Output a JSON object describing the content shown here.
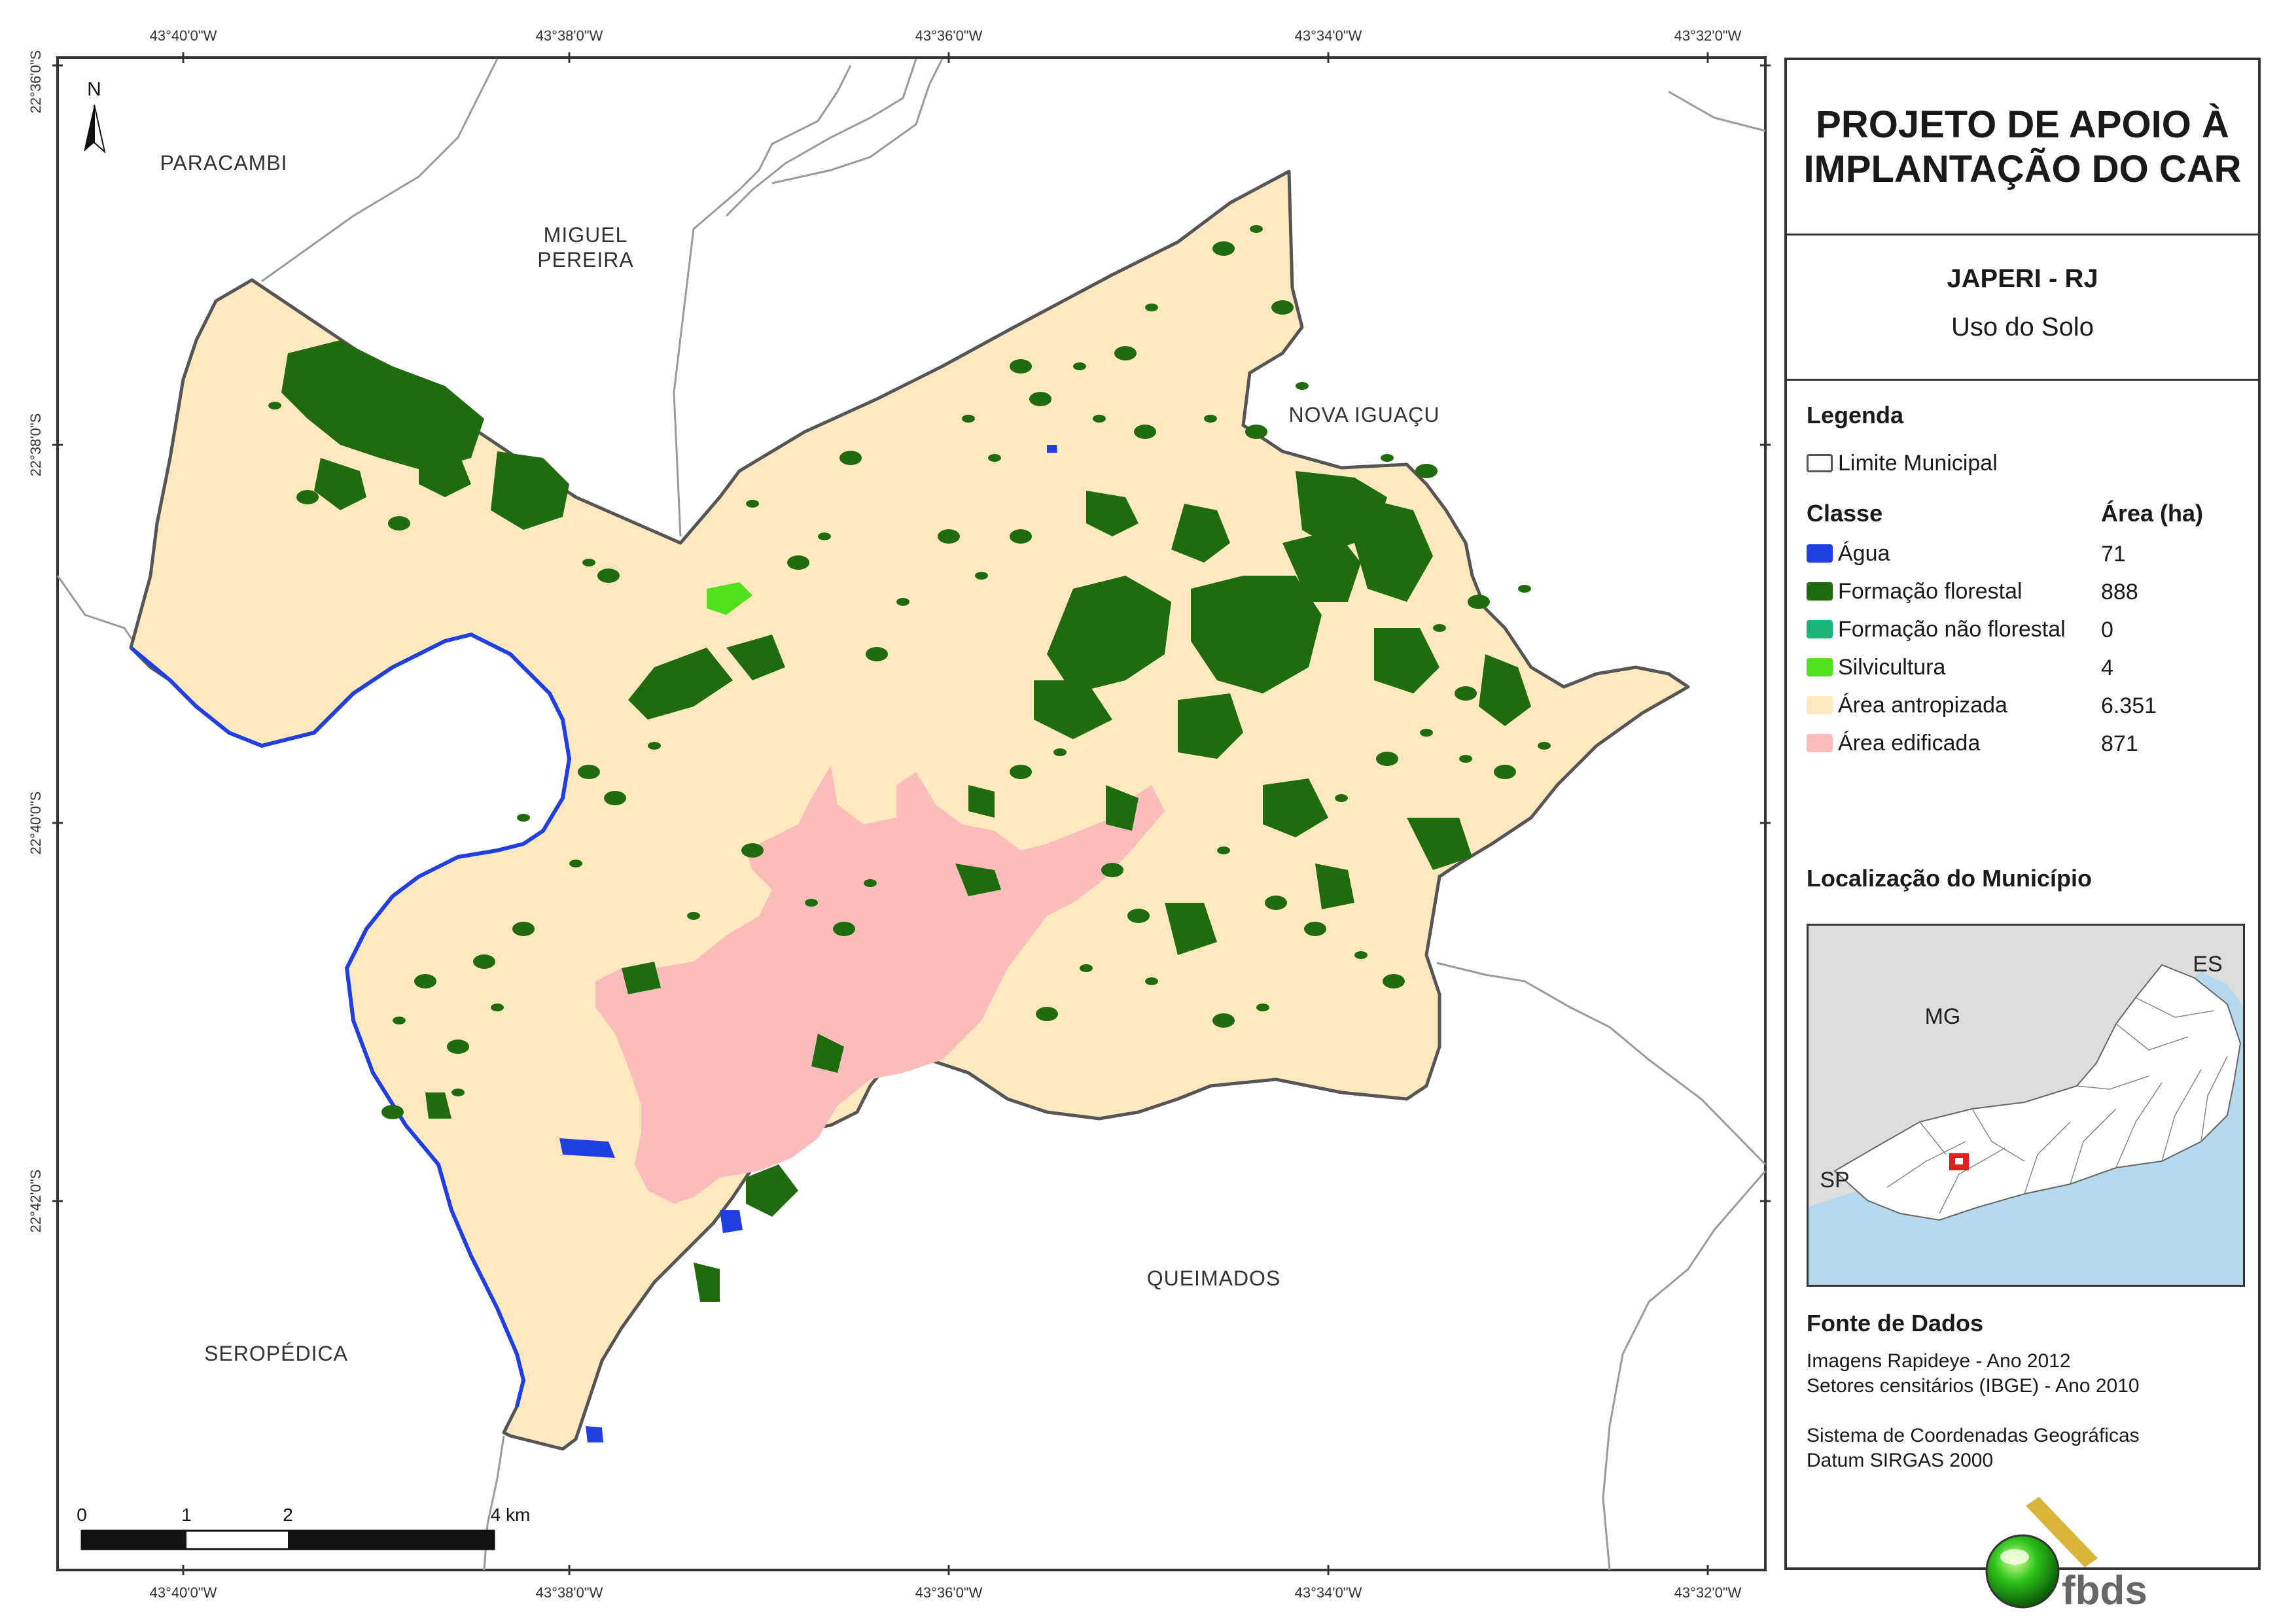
{
  "map": {
    "ticks_top": [
      "43°40'0\"W",
      "43°38'0\"W",
      "43°36'0\"W",
      "43°34'0\"W",
      "43°32'0\"W"
    ],
    "ticks_bottom": [
      "43°40'0\"W",
      "43°38'0\"W",
      "43°36'0\"W",
      "43°34'0\"W",
      "43°32'0\"W"
    ],
    "ticks_left": [
      "22°36'0\"S",
      "22°38'0\"S",
      "22°40'0\"S",
      "22°42'0\"S"
    ],
    "north_label": "N",
    "neighbors": {
      "paracambi": "PARACAMBI",
      "miguel_1": "MIGUEL",
      "miguel_2": "PEREIRA",
      "nova_iguacu": "NOVA IGUAÇU",
      "queimados": "QUEIMADOS",
      "seropedica": "SEROPÉDICA"
    },
    "scale": {
      "l0": "0",
      "l1": "1",
      "l2": "2",
      "l4": "4 km"
    },
    "colors": {
      "water": "#1f3fe0",
      "forest": "#1f6b0e",
      "nonforest": "#1db37a",
      "silvic": "#4fe01e",
      "anthropic": "#fde8c0",
      "built": "#fdbcbc",
      "border": "#555555",
      "neighbor_line": "#9a9a9a"
    }
  },
  "panel": {
    "title_1": "PROJETO DE APOIO À",
    "title_2": "IMPLANTAÇÃO DO CAR",
    "municipality": "JAPERI - RJ",
    "theme": "Uso do Solo",
    "legend_heading": "Legenda",
    "limit_label": "Limite Municipal",
    "class_heading": "Classe",
    "area_heading": "Área (ha)",
    "classes": [
      {
        "label": "Água",
        "area": "71",
        "color": "#1f3fe0"
      },
      {
        "label": "Formação florestal",
        "area": "888",
        "color": "#1f6b0e"
      },
      {
        "label": "Formação não florestal",
        "area": "0",
        "color": "#1db37a"
      },
      {
        "label": "Silvicultura",
        "area": "4",
        "color": "#4fe01e"
      },
      {
        "label": "Área antropizada",
        "area": "6.351",
        "color": "#fde8c0"
      },
      {
        "label": "Área edificada",
        "area": "871",
        "color": "#fdbcbc"
      }
    ],
    "location_heading": "Localização do Município",
    "inset": {
      "mg": "MG",
      "es": "ES",
      "sp": "SP"
    },
    "sources_heading": "Fonte de Dados",
    "src_1": "Imagens Rapideye - Ano 2012",
    "src_2": "Setores censitários (IBGE) - Ano 2010",
    "src_3": "Sistema de Coordenadas Geográficas",
    "src_4": "Datum SIRGAS 2000",
    "logo_text": "fbds"
  }
}
